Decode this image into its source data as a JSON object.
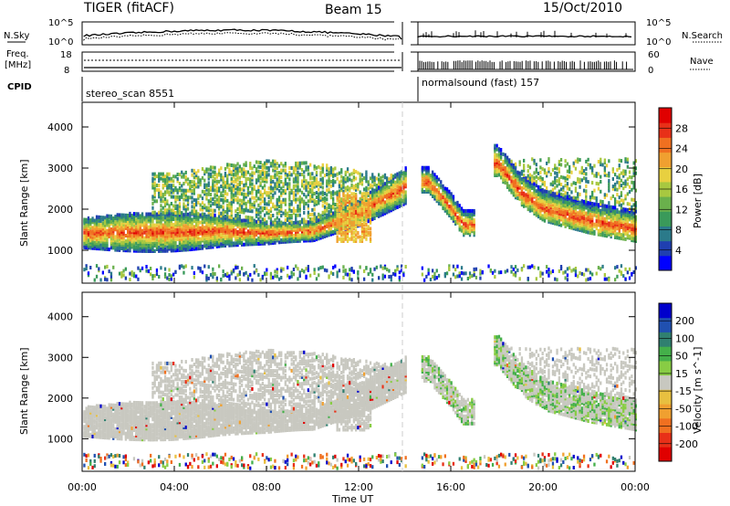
{
  "header": {
    "radar": "TIGER (fitACF)",
    "beam": "Beam 15",
    "date": "15/Oct/2010"
  },
  "top_panels": {
    "sky_label": "N.Sky",
    "sky_ticks": [
      "10^5",
      "10^0"
    ],
    "search_label": "N.Search",
    "freq_label_1": "Freq.",
    "freq_label_2": "[MHz]",
    "freq_ticks": [
      "18",
      "8"
    ],
    "nave_label": "Nave",
    "nave_ticks": [
      "60",
      "0"
    ],
    "cpid_label": "CPID",
    "cpid_1": "stereo_scan 8551",
    "cpid_2": "normalsound (fast) 157"
  },
  "chart_data": [
    {
      "type": "heatmap",
      "panel": "power",
      "ylabel": "Slant Range [km]",
      "xlabel": "Time UT",
      "xticks": [
        "00:00",
        "04:00",
        "08:00",
        "12:00",
        "16:00",
        "20:00",
        "00:00"
      ],
      "yticks": [
        1000,
        2000,
        3000,
        4000
      ],
      "ylim": [
        200,
        4600
      ],
      "xlim_hours": [
        0,
        24
      ],
      "data_gap_hours": [
        14.0,
        14.7
      ],
      "colorbar": {
        "label": "Power [dB]",
        "ticks": [
          "4",
          "8",
          "12",
          "16",
          "20",
          "24",
          "28"
        ],
        "colors": [
          "#0000ff",
          "#1f3fb0",
          "#2b7a8a",
          "#3a9a5a",
          "#6ab04c",
          "#a8c840",
          "#e8d040",
          "#f0a030",
          "#f07020",
          "#e83018",
          "#e00000"
        ]
      },
      "bands": [
        {
          "name": "main echo",
          "x": [
            0,
            2,
            4,
            6,
            8,
            10,
            12,
            14
          ],
          "y": [
            1400,
            1420,
            1430,
            1450,
            1400,
            1450,
            1900,
            2550
          ]
        },
        {
          "name": "upper echo",
          "x": [
            4,
            6,
            8,
            10,
            12,
            14
          ],
          "y": [
            2600,
            2800,
            2900,
            2850,
            2650,
            2500
          ]
        },
        {
          "name": "morning arc",
          "x": [
            15,
            16,
            16.5
          ],
          "y": [
            2650,
            2000,
            1600
          ]
        },
        {
          "name": "evening arc",
          "x": [
            18,
            19,
            20,
            22,
            24
          ],
          "y": [
            3100,
            2400,
            2000,
            1700,
            1500
          ]
        }
      ]
    },
    {
      "type": "heatmap",
      "panel": "velocity",
      "ylabel": "Slant Range [km]",
      "xlabel": "Time UT",
      "xticks": [
        "00:00",
        "04:00",
        "08:00",
        "12:00",
        "16:00",
        "20:00",
        "00:00"
      ],
      "yticks": [
        1000,
        2000,
        3000,
        4000
      ],
      "ylim": [
        200,
        4600
      ],
      "xlim_hours": [
        0,
        24
      ],
      "data_gap_hours": [
        14.0,
        14.7
      ],
      "colorbar": {
        "label": "Velocity [m s^-1]",
        "ticks": [
          "200",
          "100",
          "50",
          "15",
          "-15",
          "-50",
          "-100",
          "-200"
        ],
        "colors": [
          "#0000cc",
          "#2050b0",
          "#308070",
          "#44b04a",
          "#88cc44",
          "#c8c8c0",
          "#e8c040",
          "#f0a030",
          "#f07020",
          "#e83018",
          "#e00000"
        ]
      }
    }
  ]
}
